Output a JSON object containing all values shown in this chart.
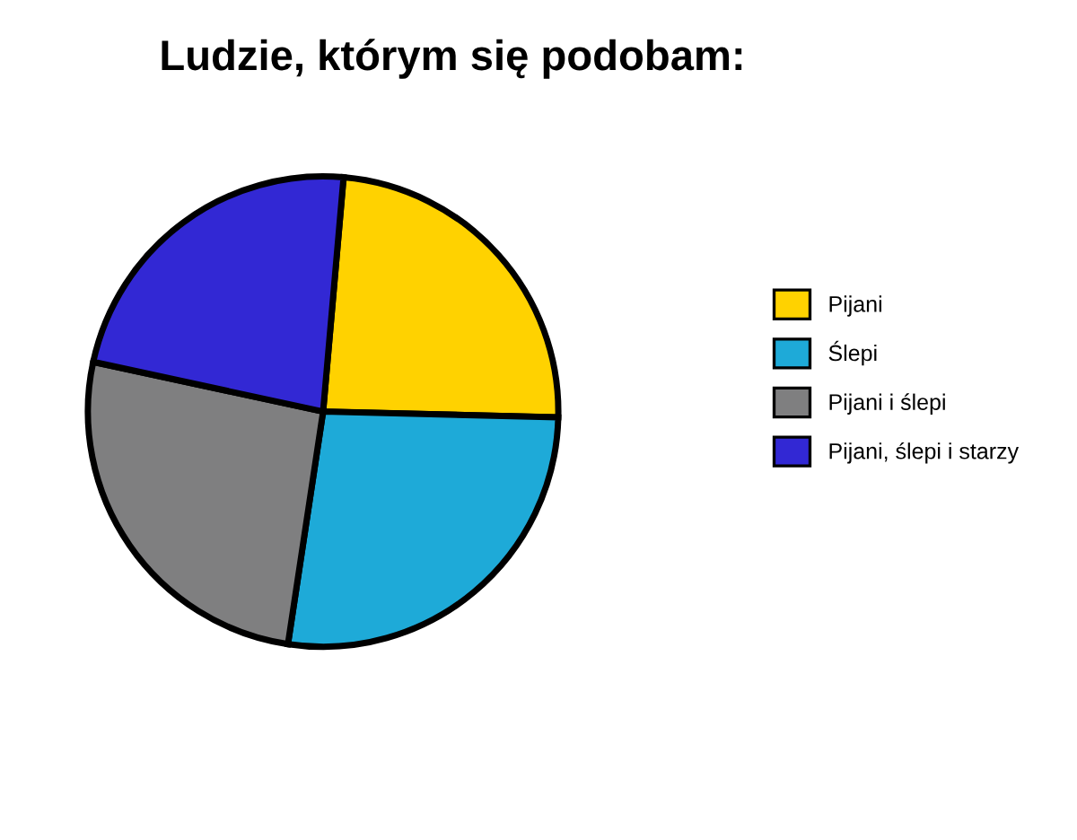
{
  "chart_data": {
    "type": "pie",
    "title": "Ludzie, którym się podobam:",
    "categories": [
      "Pijani",
      "Ślepi",
      "Pijani i ślepi",
      "Pijani, ślepi i starzy"
    ],
    "values": [
      24,
      27,
      26,
      23
    ],
    "colors": [
      "#ffd200",
      "#1eaad8",
      "#7f7f80",
      "#3228d4"
    ],
    "legend": "right"
  }
}
